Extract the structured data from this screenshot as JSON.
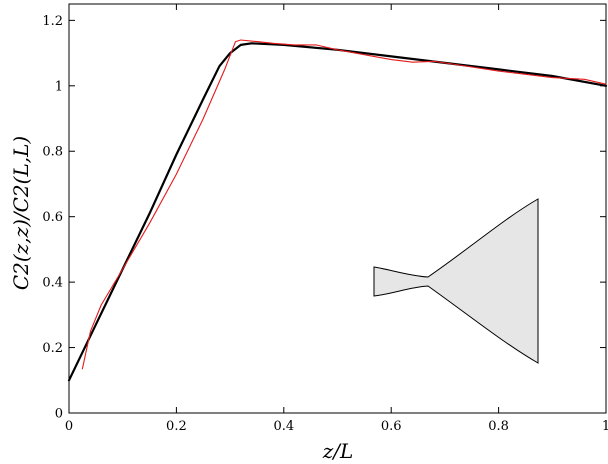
{
  "chart_data": {
    "type": "line",
    "xlabel": "z/L",
    "ylabel": "C2(z,z)/C2(L,L)",
    "xlim": [
      0,
      1
    ],
    "ylim": [
      0,
      1.25
    ],
    "x_ticks": [
      0,
      0.2,
      0.4,
      0.6,
      0.8,
      1
    ],
    "y_ticks": [
      0,
      0.2,
      0.4,
      0.6,
      0.8,
      1,
      1.2
    ],
    "x_tick_labels": [
      "0",
      "0.2",
      "0.4",
      "0.6",
      "0.8",
      "1"
    ],
    "y_tick_labels": [
      "0",
      "0.2",
      "0.4",
      "0.6",
      "0.8",
      "1",
      "1.2"
    ],
    "grid": false,
    "series": [
      {
        "color": "#000000",
        "x": [
          0,
          0.05,
          0.1,
          0.15,
          0.2,
          0.25,
          0.28,
          0.3,
          0.32,
          0.34,
          0.4,
          0.5,
          0.6,
          0.7,
          0.8,
          0.9,
          1.0
        ],
        "y": [
          0.1,
          0.27,
          0.44,
          0.61,
          0.79,
          0.96,
          1.06,
          1.1,
          1.125,
          1.13,
          1.125,
          1.11,
          1.09,
          1.07,
          1.05,
          1.03,
          1.0
        ]
      },
      {
        "color": "#e41a1c",
        "x": [
          0.025,
          0.04,
          0.06,
          0.1,
          0.15,
          0.2,
          0.25,
          0.29,
          0.31,
          0.32,
          0.35,
          0.38,
          0.42,
          0.46,
          0.5,
          0.55,
          0.6,
          0.64,
          0.68,
          0.72,
          0.8,
          0.9,
          0.96,
          1.0
        ],
        "y": [
          0.135,
          0.25,
          0.33,
          0.44,
          0.58,
          0.73,
          0.9,
          1.05,
          1.135,
          1.14,
          1.135,
          1.13,
          1.125,
          1.125,
          1.11,
          1.095,
          1.08,
          1.072,
          1.075,
          1.065,
          1.045,
          1.025,
          1.02,
          1.005
        ]
      }
    ],
    "inset": {
      "fill": "#e6e6e6",
      "stroke": "#000000"
    }
  }
}
